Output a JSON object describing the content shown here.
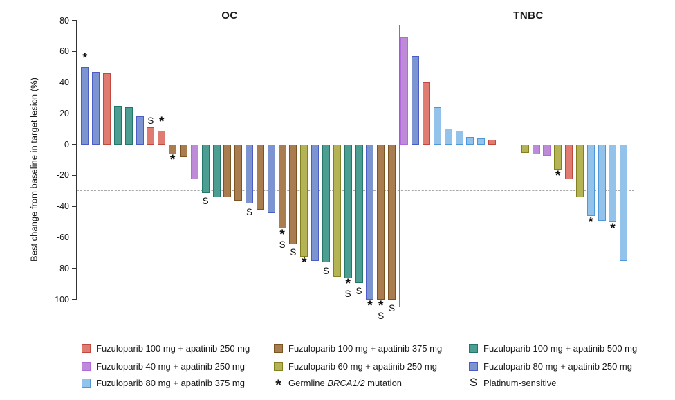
{
  "chart_data": {
    "type": "bar",
    "subtype": "waterfall",
    "ylabel": "Best change from baseline in target lesion (%)",
    "ylim": [
      -100,
      80
    ],
    "yticks": [
      80,
      60,
      40,
      20,
      0,
      -20,
      -40,
      -60,
      -80,
      -100
    ],
    "reference_lines": [
      20,
      -30
    ],
    "grid": false,
    "legend_position": "bottom",
    "groups": {
      "fz100_ap250": {
        "label": "Fuzuloparib 100 mg + apatinib 250 mg",
        "fill": "#DF7B71",
        "border": "#C0483E"
      },
      "fz40_ap250": {
        "label": "Fuzuloparib 40 mg + apatinib 250 mg",
        "fill": "#BE8BD8",
        "border": "#B16ADE"
      },
      "fz80_ap375": {
        "label": "Fuzuloparib 80 mg + apatinib 375 mg",
        "fill": "#93C2EA",
        "border": "#4E97D8"
      },
      "fz100_ap375": {
        "label": "Fuzuloparib 100 mg + apatinib 375 mg",
        "fill": "#A97D4F",
        "border": "#7A5422"
      },
      "fz60_ap250": {
        "label": "Fuzuloparib 60 mg + apatinib 250 mg",
        "fill": "#B4B356",
        "border": "#82811F"
      },
      "fz100_ap500": {
        "label": "Fuzuloparib 100 mg + apatinib 500 mg",
        "fill": "#4C9E93",
        "border": "#23776A"
      },
      "fz80_ap250": {
        "label": "Fuzuloparib 80 mg + apatinib 250 mg",
        "fill": "#7C94CF",
        "border": "#4C5CC5"
      }
    },
    "markers": {
      "star": {
        "symbol": "*",
        "label_parts": [
          "Germline ",
          "BRCA1/2",
          " mutation"
        ]
      },
      "platinum": {
        "symbol": "S",
        "label": "Platinum-sensitive"
      }
    },
    "panels": [
      {
        "title": "OC",
        "bars": [
          {
            "value": 50,
            "group": "fz80_ap250",
            "marks": [
              "*"
            ]
          },
          {
            "value": 47,
            "group": "fz80_ap250"
          },
          {
            "value": 46,
            "group": "fz100_ap250"
          },
          {
            "value": 25,
            "group": "fz100_ap500"
          },
          {
            "value": 24,
            "group": "fz100_ap500"
          },
          {
            "value": 18,
            "group": "fz80_ap250"
          },
          {
            "value": 11,
            "group": "fz100_ap250",
            "marks": [
              "S"
            ]
          },
          {
            "value": 9,
            "group": "fz100_ap250",
            "marks": [
              "*"
            ]
          },
          {
            "value": -6,
            "group": "fz100_ap375",
            "marks": [
              "*"
            ]
          },
          {
            "value": -8,
            "group": "fz100_ap375"
          },
          {
            "value": -22,
            "group": "fz40_ap250"
          },
          {
            "value": -31,
            "group": "fz100_ap500",
            "marks": [
              "S"
            ]
          },
          {
            "value": -34,
            "group": "fz100_ap500"
          },
          {
            "value": -34,
            "group": "fz100_ap375"
          },
          {
            "value": -36,
            "group": "fz100_ap375"
          },
          {
            "value": -38,
            "group": "fz80_ap250",
            "marks": [
              "S"
            ]
          },
          {
            "value": -42,
            "group": "fz100_ap375"
          },
          {
            "value": -44,
            "group": "fz80_ap250"
          },
          {
            "value": -54,
            "group": "fz100_ap375",
            "marks": [
              "*",
              "S"
            ]
          },
          {
            "value": -64,
            "group": "fz100_ap375",
            "marks": [
              "S"
            ]
          },
          {
            "value": -72,
            "group": "fz60_ap250",
            "marks": [
              "*"
            ]
          },
          {
            "value": -75,
            "group": "fz80_ap250"
          },
          {
            "value": -76,
            "group": "fz100_ap500",
            "marks": [
              "S"
            ]
          },
          {
            "value": -85,
            "group": "fz60_ap250"
          },
          {
            "value": -86,
            "group": "fz100_ap500",
            "marks": [
              "*",
              "S"
            ]
          },
          {
            "value": -89,
            "group": "fz100_ap500",
            "marks": [
              "S"
            ]
          },
          {
            "value": -100,
            "group": "fz80_ap250",
            "marks": [
              "*"
            ]
          },
          {
            "value": -100,
            "group": "fz100_ap375",
            "marks": [
              "*",
              "S"
            ]
          },
          {
            "value": -100,
            "group": "fz100_ap375",
            "marks": [
              "S"
            ]
          }
        ]
      },
      {
        "title": "TNBC",
        "bars": [
          {
            "value": 69,
            "group": "fz40_ap250",
            "slot": 0
          },
          {
            "value": 57,
            "group": "fz80_ap250",
            "slot": 1
          },
          {
            "value": 40,
            "group": "fz100_ap250",
            "slot": 2
          },
          {
            "value": 24,
            "group": "fz80_ap375",
            "slot": 3
          },
          {
            "value": 10,
            "group": "fz80_ap375",
            "slot": 4
          },
          {
            "value": 9,
            "group": "fz80_ap375",
            "slot": 5
          },
          {
            "value": 5,
            "group": "fz80_ap375",
            "slot": 6
          },
          {
            "value": 4,
            "group": "fz80_ap375",
            "slot": 7
          },
          {
            "value": 3,
            "group": "fz100_ap250",
            "slot": 8
          },
          {
            "value": -5,
            "group": "fz60_ap250",
            "slot": 11
          },
          {
            "value": -6,
            "group": "fz40_ap250",
            "slot": 12
          },
          {
            "value": -7,
            "group": "fz40_ap250",
            "slot": 13
          },
          {
            "value": -16,
            "group": "fz60_ap250",
            "slot": 14,
            "marks": [
              "*"
            ]
          },
          {
            "value": -22,
            "group": "fz100_ap250",
            "slot": 15
          },
          {
            "value": -34,
            "group": "fz60_ap250",
            "slot": 16
          },
          {
            "value": -46,
            "group": "fz80_ap375",
            "slot": 17,
            "marks": [
              "*"
            ]
          },
          {
            "value": -49,
            "group": "fz80_ap375",
            "slot": 18
          },
          {
            "value": -50,
            "group": "fz80_ap375",
            "slot": 19,
            "marks": [
              "*"
            ]
          },
          {
            "value": -75,
            "group": "fz80_ap375",
            "slot": 20
          }
        ]
      }
    ],
    "legend_layout": [
      {
        "col": 0,
        "row": 0,
        "swatch": "fz100_ap250"
      },
      {
        "col": 0,
        "row": 1,
        "swatch": "fz40_ap250"
      },
      {
        "col": 0,
        "row": 2,
        "swatch": "fz80_ap375"
      },
      {
        "col": 1,
        "row": 0,
        "swatch": "fz100_ap375"
      },
      {
        "col": 1,
        "row": 1,
        "swatch": "fz60_ap250"
      },
      {
        "col": 1,
        "row": 2,
        "symbol": "star"
      },
      {
        "col": 2,
        "row": 0,
        "swatch": "fz100_ap500"
      },
      {
        "col": 2,
        "row": 1,
        "swatch": "fz80_ap250"
      },
      {
        "col": 2,
        "row": 2,
        "symbol": "platinum"
      }
    ]
  }
}
